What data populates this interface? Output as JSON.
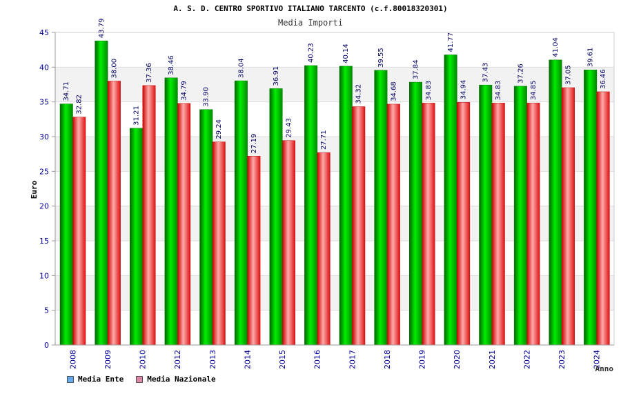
{
  "chart_data": {
    "type": "bar",
    "title": "A. S. D. CENTRO SPORTIVO ITALIANO TARCENTO (c.f.80018320301)",
    "subtitle": "Media Importi",
    "xlabel": "Anno",
    "ylabel": "Euro",
    "ylim": [
      0,
      45
    ],
    "yticks": [
      "0",
      "5",
      "10",
      "15",
      "20",
      "25",
      "30",
      "35",
      "40",
      "45"
    ],
    "grid": true,
    "legend_position": "bottom-left",
    "categories": [
      "2008",
      "2009",
      "2010",
      "2012",
      "2013",
      "2014",
      "2015",
      "2016",
      "2017",
      "2018",
      "2019",
      "2020",
      "2021",
      "2022",
      "2023",
      "2024"
    ],
    "series": [
      {
        "name": "Media Ente",
        "color": "#00cc00",
        "legend_color": "#66aaee",
        "values": [
          34.71,
          43.79,
          31.21,
          38.46,
          33.9,
          38.04,
          36.91,
          40.23,
          40.14,
          39.55,
          37.84,
          41.77,
          37.43,
          37.26,
          41.04,
          39.61
        ],
        "labels": [
          "34.71",
          "43.79",
          "31.21",
          "38.46",
          "33.90",
          "38.04",
          "36.91",
          "40.23",
          "40.14",
          "39.55",
          "37.84",
          "41.77",
          "37.43",
          "37.26",
          "41.04",
          "39.61"
        ]
      },
      {
        "name": "Media Nazionale",
        "color": "#ee2233",
        "legend_color": "#dd88aa",
        "values": [
          32.82,
          38.0,
          37.36,
          34.79,
          29.24,
          27.19,
          29.43,
          27.71,
          34.32,
          34.68,
          34.83,
          34.94,
          34.83,
          34.85,
          37.05,
          36.46
        ],
        "labels": [
          "32.82",
          "38.00",
          "37.36",
          "34.79",
          "29.24",
          "27.19",
          "29.43",
          "27.71",
          "34.32",
          "34.68",
          "34.83",
          "34.94",
          "34.83",
          "34.85",
          "37.05",
          "36.46"
        ]
      }
    ]
  }
}
